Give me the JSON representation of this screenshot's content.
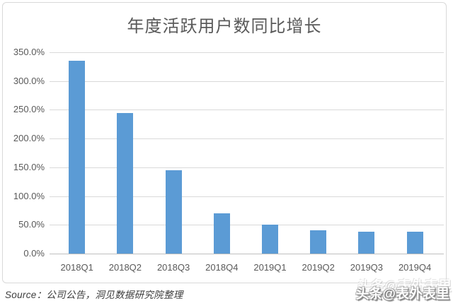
{
  "chart_data": {
    "type": "bar",
    "title": "年度活跃用户数同比增长",
    "categories": [
      "2018Q1",
      "2018Q2",
      "2018Q3",
      "2018Q4",
      "2019Q1",
      "2019Q2",
      "2019Q3",
      "2019Q4"
    ],
    "values": [
      335,
      245,
      145,
      70,
      50,
      40,
      38,
      38
    ],
    "unit": "%",
    "xlabel": "",
    "ylabel": "",
    "ylim": [
      0,
      350
    ],
    "ytick_step": 50,
    "ytick_labels": [
      "0.0%",
      "50.0%",
      "100.0%",
      "150.0%",
      "200.0%",
      "250.0%",
      "300.0%",
      "350.0%"
    ],
    "grid": true,
    "legend": "none",
    "bar_color": "#5b9bd5"
  },
  "footer": {
    "source": "Source：公司公告，洞见数据研究院整理"
  },
  "watermark": {
    "text": "头条@表外表里"
  }
}
